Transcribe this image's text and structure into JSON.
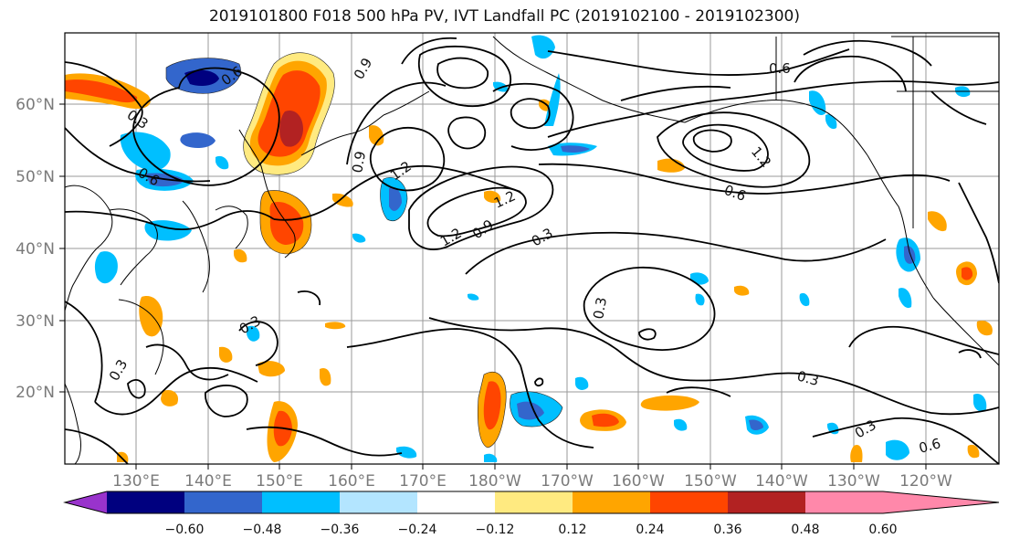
{
  "title": "2019101800 F018 500 hPa PV, IVT Landfall PC (2019102100 - 2019102300)",
  "lat_ticks": [
    "60°N",
    "50°N",
    "40°N",
    "30°N",
    "20°N"
  ],
  "lon_ticks": [
    "130°E",
    "140°E",
    "150°E",
    "160°E",
    "170°E",
    "180°W",
    "170°W",
    "160°W",
    "150°W",
    "140°W",
    "130°W",
    "120°W"
  ],
  "contour_labels": [
    "0.6",
    "0.3",
    "0.6",
    "0.9",
    "1.2",
    "0.9",
    "1.2",
    "1.2",
    "0.9",
    "0.3",
    "0.6",
    "1.2",
    "0.6",
    "0.3",
    "0.3",
    "0.3",
    "0.3",
    "0.3",
    "0.6"
  ],
  "colorbar": {
    "colors": [
      "#9933cc",
      "#00007f",
      "#3366cc",
      "#00bfff",
      "#b3e5ff",
      "#ffffff",
      "#ffea80",
      "#ffa500",
      "#ff4500",
      "#b22222",
      "#ff88aa"
    ],
    "tick_labels": [
      "−0.60",
      "−0.48",
      "−0.36",
      "−0.24",
      "−0.12",
      "0.12",
      "0.24",
      "0.36",
      "0.48",
      "0.60"
    ]
  }
}
